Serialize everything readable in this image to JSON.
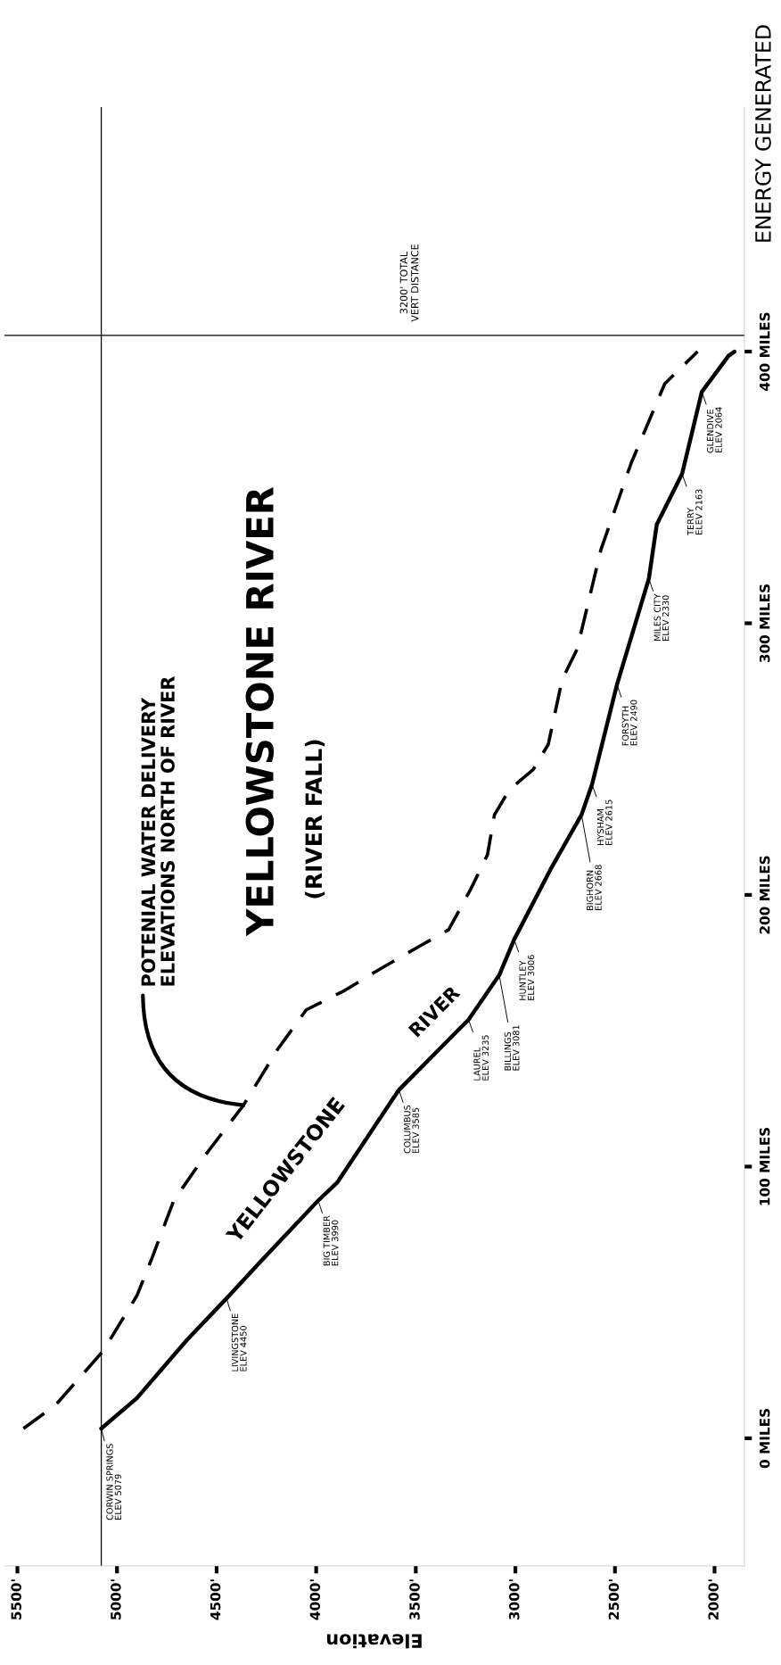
{
  "chart_data": {
    "type": "line",
    "title": "YELLOWSTONE RIVER",
    "subtitle": "(RIVER FALL)",
    "xlabel": "Elevation",
    "xlim": [
      5565,
      1850
    ],
    "ylim": [
      -47,
      490
    ],
    "xticks": [
      {
        "value": 5500,
        "label": "5500'"
      },
      {
        "value": 5000,
        "label": "5000'"
      },
      {
        "value": 4500,
        "label": "4500'"
      },
      {
        "value": 4000,
        "label": "4000'"
      },
      {
        "value": 3500,
        "label": "3500'"
      },
      {
        "value": 3000,
        "label": "3000'"
      },
      {
        "value": 2500,
        "label": "2500'"
      },
      {
        "value": 2000,
        "label": "2000'"
      }
    ],
    "yticks": [
      {
        "value": 0,
        "label": "0 MILES"
      },
      {
        "value": 100,
        "label": "100 MILES"
      },
      {
        "value": 200,
        "label": "200 MILES"
      },
      {
        "value": 300,
        "label": "300 MILES"
      },
      {
        "value": 400,
        "label": "400 MILES"
      }
    ],
    "series": [
      {
        "color": "#000000",
        "line_style": "solid",
        "x": [
          5079,
          4900,
          4650,
          4450,
          4285,
          3990,
          3895,
          3585,
          3235,
          3081,
          3006,
          2825,
          2668,
          2615,
          2490,
          2330,
          2290,
          2163,
          2064,
          1930,
          1900
        ],
        "values": [
          3.6,
          14.8,
          36.1,
          51.5,
          64.6,
          87.5,
          94.1,
          128.2,
          154.1,
          170.5,
          183.6,
          209.2,
          229.5,
          240.7,
          277.4,
          316.4,
          336.4,
          355,
          385.2,
          398.4,
          400
        ]
      },
      {
        "color": "#000000",
        "line_style": "dashed",
        "x": [
          5470,
          5310,
          5070,
          4900,
          4825,
          4715,
          4560,
          4365,
          4195,
          4050,
          3855,
          3685,
          3470,
          3335,
          3225,
          3140,
          3105,
          3030,
          2910,
          2835,
          2765,
          2690,
          2570,
          2420,
          2250,
          2085
        ],
        "values": [
          3.6,
          12.1,
          32.1,
          52.5,
          66.2,
          87.5,
          103.9,
          122.6,
          143,
          157.7,
          164.9,
          172.5,
          181.6,
          187.2,
          202,
          214.8,
          229.5,
          238.7,
          246.2,
          255.4,
          279.3,
          290.5,
          327.2,
          358.7,
          388.2,
          400
        ]
      }
    ],
    "ref_lines": [
      {
        "axis": "x",
        "value": 5079,
        "color": "#000000"
      },
      {
        "axis": "y",
        "value": 406,
        "color": "#000000"
      }
    ],
    "annotations": [
      {
        "text": "CORWIN SPRINGS\nELEV 5079",
        "x": 5079,
        "y": 3.6
      },
      {
        "text": "LIVINGSTONE\nELEV 4450",
        "x": 4450,
        "y": 51.5
      },
      {
        "text": "BIG TIMBER\nELEV 3990",
        "x": 3990,
        "y": 87.5
      },
      {
        "text": "COLUMBUS\nELEV 3585",
        "x": 3585,
        "y": 128.2
      },
      {
        "text": "LAUREL\nELEV 3235",
        "x": 3235,
        "y": 154.1
      },
      {
        "text": "BILLINGS\nELEV 3081",
        "x": 3081,
        "y": 170.5
      },
      {
        "text": "HUNTLEY\nELEV 3006",
        "x": 3006,
        "y": 183.6
      },
      {
        "text": "BIGHORN\nELEV 2668",
        "x": 2668,
        "y": 229.5
      },
      {
        "text": "HYSHAM\nELEV 2615",
        "x": 2615,
        "y": 240.7
      },
      {
        "text": "FORSYTH\nELEV 2490",
        "x": 2490,
        "y": 277.4
      },
      {
        "text": "MILES CITY\nELEV 2330",
        "x": 2330,
        "y": 316.4
      },
      {
        "text": "TERRY\nELEV 2163",
        "x": 2163,
        "y": 355
      },
      {
        "text": "GLENDIVE\nELEV 2064",
        "x": 2064,
        "y": 385.2
      },
      "YELLOWSTONE",
      "RIVER",
      {
        "text": "POTENIAL WATER DELIVERY\nELEVATIONS NORTH OF RIVER",
        "x": 4365,
        "y": 122.6
      },
      "3200' TOTAL\nVERT DISTANCE",
      "ENERGY GENERATED"
    ]
  }
}
